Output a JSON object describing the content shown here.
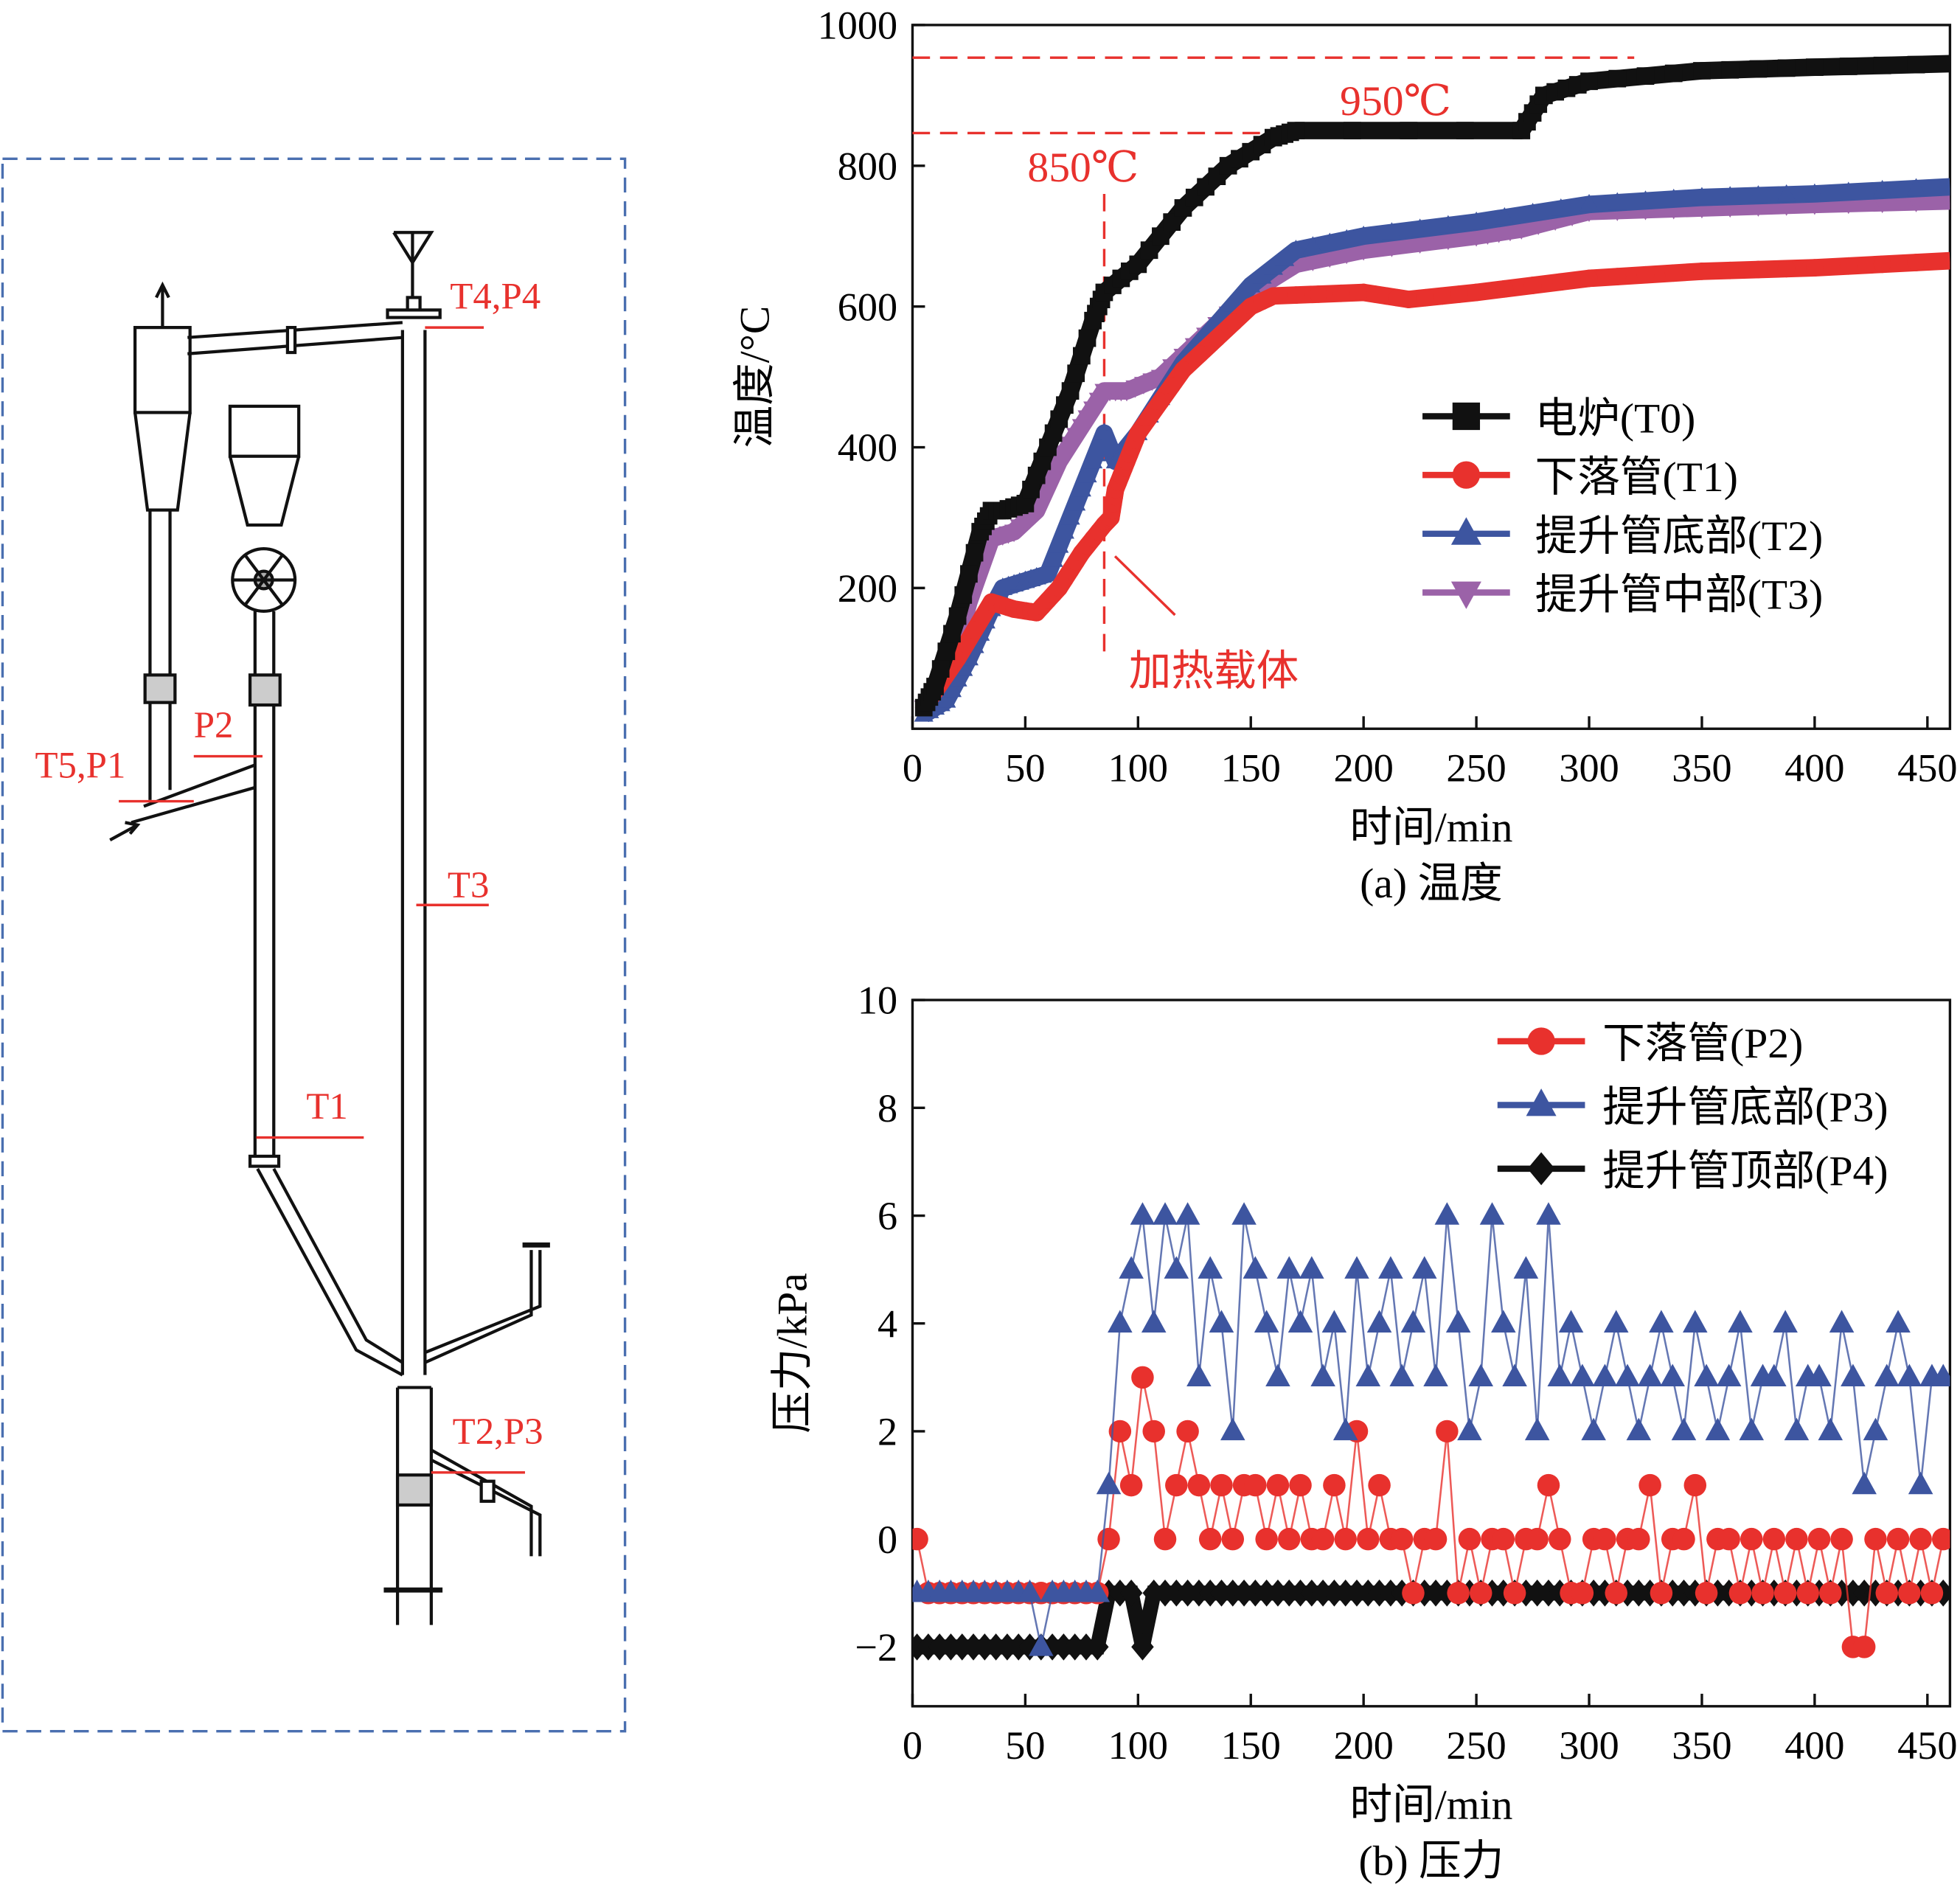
{
  "diagram": {
    "labels": [
      "T4,P4",
      "T5,P1",
      "P2",
      "T3",
      "T1",
      "T2,P3"
    ],
    "label_color": "#e8312d",
    "border_color": "#4a6fb0"
  },
  "chart_data": [
    {
      "type": "line",
      "caption": "(a) 温度",
      "xlabel": "时间/min",
      "ylabel": "温度/°C",
      "xlim": [
        0,
        460
      ],
      "ylim": [
        0,
        1000
      ],
      "xticks": [
        0,
        50,
        100,
        150,
        200,
        250,
        300,
        350,
        400,
        450
      ],
      "yticks": [
        200,
        400,
        600,
        800,
        1000
      ],
      "legend_position": "center-right",
      "annotations": {
        "t950": "950℃",
        "t850": "850℃",
        "carrier": "加热载体"
      },
      "annotation_values": {
        "h1": 950,
        "h2": 850,
        "vline_x": 85
      },
      "series": [
        {
          "name": "电炉(T0)",
          "color": "#111111",
          "marker": "square",
          "x": [
            5,
            10,
            20,
            30,
            35,
            40,
            50,
            60,
            70,
            80,
            85,
            100,
            120,
            140,
            160,
            170,
            270,
            280,
            300,
            350,
            400,
            460
          ],
          "y": [
            30,
            60,
            160,
            280,
            310,
            310,
            320,
            400,
            480,
            580,
            620,
            660,
            740,
            800,
            840,
            850,
            850,
            900,
            920,
            935,
            940,
            945
          ]
        },
        {
          "name": "下落管(T1)",
          "color": "#e8312d",
          "marker": "circle",
          "x": [
            5,
            20,
            35,
            45,
            55,
            65,
            75,
            85,
            88,
            90,
            95,
            100,
            120,
            150,
            160,
            200,
            220,
            250,
            300,
            350,
            400,
            460
          ],
          "y": [
            30,
            100,
            180,
            170,
            165,
            200,
            250,
            290,
            300,
            340,
            380,
            420,
            510,
            600,
            615,
            620,
            610,
            620,
            640,
            650,
            655,
            665
          ]
        },
        {
          "name": "提升管底部(T2)",
          "color": "#3d55a0",
          "marker": "triangle-up",
          "x": [
            5,
            15,
            25,
            35,
            40,
            50,
            60,
            70,
            80,
            85,
            90,
            100,
            120,
            150,
            170,
            200,
            250,
            300,
            350,
            400,
            460
          ],
          "y": [
            20,
            40,
            100,
            170,
            200,
            210,
            220,
            300,
            380,
            420,
            380,
            420,
            520,
            630,
            680,
            700,
            720,
            745,
            755,
            760,
            770
          ]
        },
        {
          "name": "提升管中部(T3)",
          "color": "#9b62a8",
          "marker": "triangle-down",
          "x": [
            5,
            15,
            25,
            35,
            45,
            55,
            65,
            75,
            85,
            95,
            110,
            130,
            150,
            170,
            200,
            250,
            270,
            300,
            350,
            400,
            460
          ],
          "y": [
            30,
            60,
            180,
            270,
            280,
            310,
            380,
            430,
            480,
            480,
            500,
            560,
            620,
            660,
            680,
            700,
            710,
            735,
            740,
            745,
            750
          ]
        }
      ]
    },
    {
      "type": "line",
      "caption": "(b) 压力",
      "xlabel": "时间/min",
      "ylabel": "压力/kPa",
      "xlim": [
        0,
        460
      ],
      "ylim": [
        -3.1,
        10
      ],
      "xticks": [
        0,
        50,
        100,
        150,
        200,
        250,
        300,
        350,
        400,
        450
      ],
      "yticks": [
        -2,
        0,
        2,
        4,
        6,
        8,
        10
      ],
      "legend_position": "top-right",
      "x_step": 5,
      "series": [
        {
          "name": "下落管(P2)",
          "color": "#e8312d",
          "marker": "circle",
          "y": [
            0,
            -1,
            -1,
            -1,
            -1,
            -1,
            -1,
            -1,
            -1,
            -1,
            -1,
            -1,
            -1,
            -1,
            -1,
            -1,
            -1,
            0,
            2,
            1,
            3,
            2,
            0,
            1,
            2,
            1,
            0,
            1,
            0,
            1,
            1,
            0,
            1,
            0,
            1,
            0,
            0,
            1,
            0,
            2,
            0,
            1,
            0,
            0,
            -1,
            0,
            0,
            2,
            -1,
            0,
            -1,
            0,
            0,
            -1,
            0,
            0,
            1,
            0,
            -1,
            -1,
            0,
            0,
            -1,
            0,
            0,
            1,
            -1,
            0,
            0,
            1,
            -1,
            0,
            0,
            -1,
            0,
            -1,
            0,
            -1,
            0,
            -1,
            0,
            -1,
            0,
            -2,
            -2,
            0,
            -1,
            0,
            -1,
            0,
            -1,
            0
          ]
        },
        {
          "name": "提升管底部(P3)",
          "color": "#3d55a0",
          "marker": "triangle-up",
          "y": [
            -1,
            -1,
            -1,
            -1,
            -1,
            -1,
            -1,
            -1,
            -1,
            -1,
            -1,
            -2,
            -1,
            -1,
            -1,
            -1,
            -1,
            1,
            4,
            5,
            6,
            4,
            6,
            5,
            6,
            3,
            5,
            4,
            2,
            6,
            5,
            4,
            3,
            5,
            4,
            5,
            3,
            4,
            2,
            5,
            3,
            4,
            5,
            3,
            4,
            5,
            3,
            6,
            4,
            2,
            3,
            6,
            4,
            3,
            5,
            2,
            6,
            3,
            4,
            3,
            2,
            3,
            4,
            3,
            2,
            3,
            4,
            3,
            2,
            4,
            3,
            2,
            3,
            4,
            2,
            3,
            3,
            4,
            2,
            3,
            3,
            2,
            4,
            3,
            1,
            2,
            3,
            4,
            3,
            1,
            3,
            3
          ]
        },
        {
          "name": "提升管顶部(P4)",
          "color": "#111111",
          "marker": "diamond",
          "y": [
            -2,
            -2,
            -2,
            -2,
            -2,
            -2,
            -2,
            -2,
            -2,
            -2,
            -2,
            -2,
            -2,
            -2,
            -2,
            -2,
            -2,
            -1,
            -1,
            -1,
            -2,
            -1,
            -1,
            -1,
            -1,
            -1,
            -1,
            -1,
            -1,
            -1,
            -1,
            -1,
            -1,
            -1,
            -1,
            -1,
            -1,
            -1,
            -1,
            -1,
            -1,
            -1,
            -1,
            -1,
            -1,
            -1,
            -1,
            -1,
            -1,
            -1,
            -1,
            -1,
            -1,
            -1,
            -1,
            -1,
            -1,
            -1,
            -1,
            -1,
            -1,
            -1,
            -1,
            -1,
            -1,
            -1,
            -1,
            -1,
            -1,
            -1,
            -1,
            -1,
            -1,
            -1,
            -1,
            -1,
            -1,
            -1,
            -1,
            -1,
            -1,
            -1,
            -1,
            -1,
            -1,
            -1,
            -1,
            -1,
            -1,
            -1,
            -1,
            -1
          ]
        }
      ]
    }
  ]
}
